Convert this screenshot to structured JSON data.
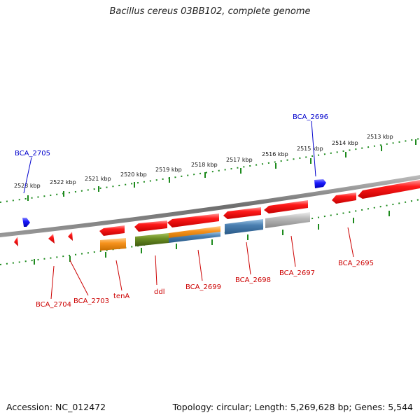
{
  "title": "Bacillus cereus 03BB102, complete genome",
  "footer": {
    "accession": "Accession: NC_012472",
    "summary": "Topology: circular; Length: 5,269,628 bp; Genes: 5,544"
  },
  "colors": {
    "backbone": "#8a8a8a",
    "ticks": "#1d8a1d",
    "label_red": "#cc0000",
    "label_blue": "#0000cc",
    "gene_red": "#ee1111",
    "gene_blue": "#1111ee",
    "gene_orange": "#f7931e",
    "gene_olive": "#6b8e23",
    "gene_steel": "#4a7fb0",
    "gene_grey": "#b8b8b8"
  },
  "scale": {
    "unit": "kbp",
    "ticks": [
      "2523 kbp",
      "2522 kbp",
      "2521 kbp",
      "2520 kbp",
      "2519 kbp",
      "2518 kbp",
      "2517 kbp",
      "2516 kbp",
      "2515 kbp",
      "2514 kbp",
      "2513 kbp"
    ]
  },
  "genes": [
    {
      "label": "BCA_2705",
      "strand": "top",
      "color": "blue"
    },
    {
      "label": "BCA_2696",
      "strand": "top",
      "color": "blue"
    },
    {
      "label": "BCA_2704",
      "strand": "bottom",
      "color": "red"
    },
    {
      "label": "BCA_2703",
      "strand": "bottom",
      "color": "red"
    },
    {
      "label": "tenA",
      "strand": "bottom",
      "color": "red"
    },
    {
      "label": "ddl",
      "strand": "bottom",
      "color": "red"
    },
    {
      "label": "BCA_2699",
      "strand": "bottom",
      "color": "red"
    },
    {
      "label": "BCA_2698",
      "strand": "bottom",
      "color": "red"
    },
    {
      "label": "BCA_2697",
      "strand": "bottom",
      "color": "red"
    },
    {
      "label": "BCA_2695",
      "strand": "bottom",
      "color": "red"
    }
  ]
}
